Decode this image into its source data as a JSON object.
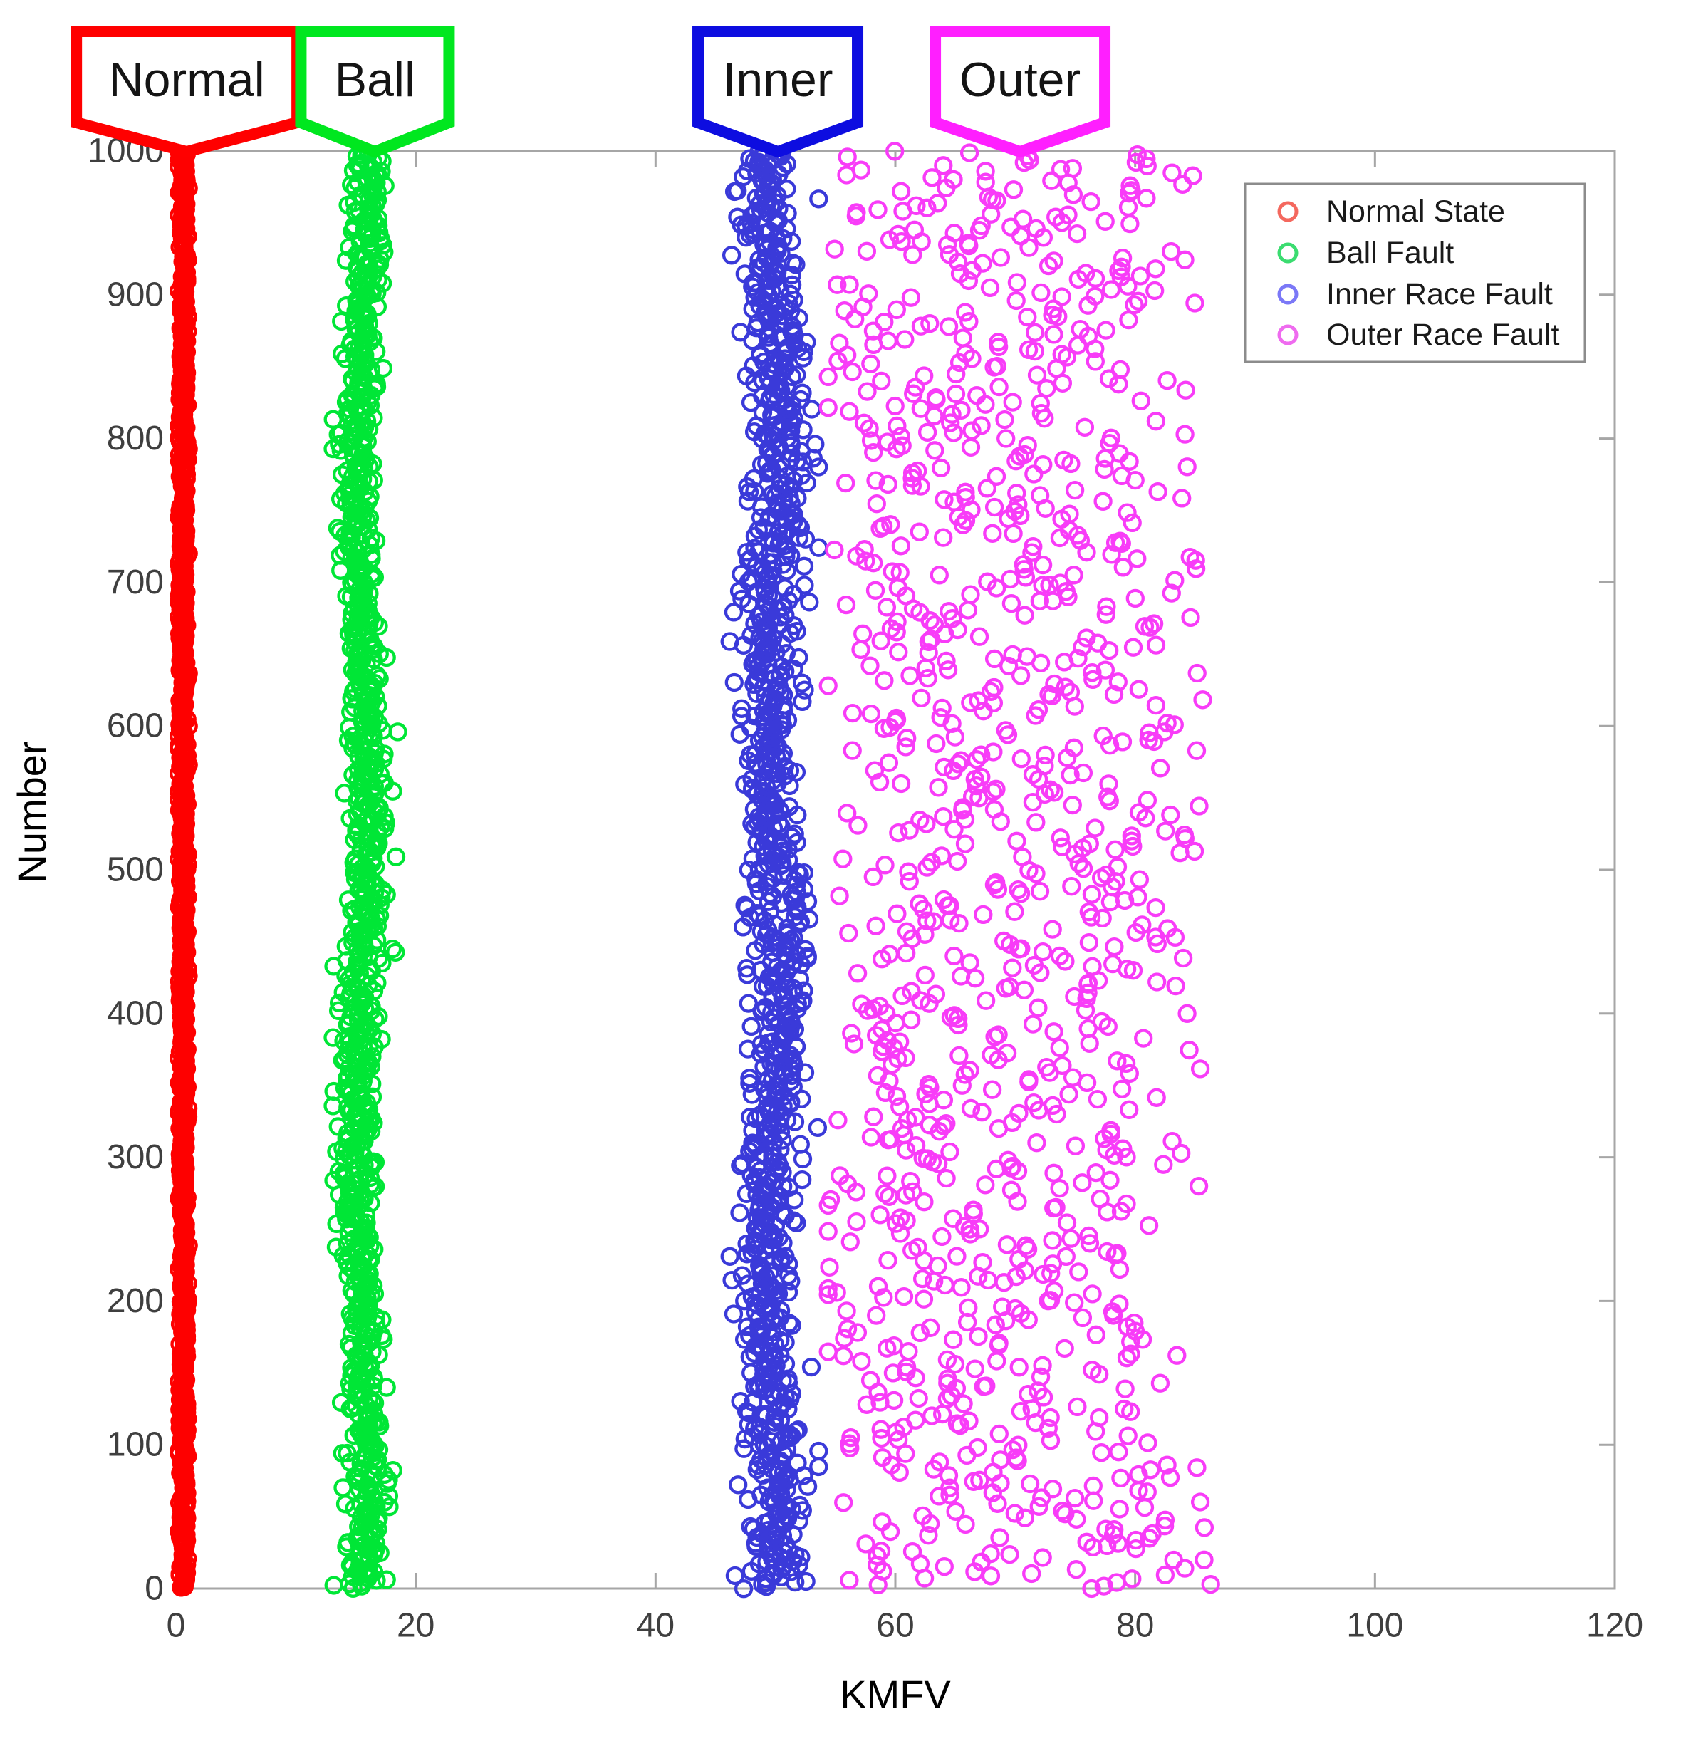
{
  "figure": {
    "background": "#ffffff",
    "description_labels": [
      "Normal",
      "Ball",
      "Inner",
      "Outer"
    ]
  },
  "callouts": [
    {
      "label": "Normal",
      "border_color": "#ff0000",
      "points_to_x": 0.9
    },
    {
      "label": "Ball",
      "border_color": "#00e71f",
      "points_to_x": 16.6
    },
    {
      "label": "Inner",
      "border_color": "#0d0de0",
      "points_to_x": 50.2
    },
    {
      "label": "Outer",
      "border_color": "#ff1fff",
      "points_to_x": 70.4
    }
  ],
  "legend": {
    "position": "top-right",
    "border_color": "#8c8c8c",
    "marker_shape": "open-circle",
    "items": [
      {
        "label": "Normal State",
        "color": "#f4685e"
      },
      {
        "label": "Ball Fault",
        "color": "#3bdc70"
      },
      {
        "label": "Inner Race Fault",
        "color": "#7b78f7"
      },
      {
        "label": "Outer Race Fault",
        "color": "#ef6bef"
      }
    ]
  },
  "chart_data": {
    "type": "scatter",
    "title": "",
    "xlabel": "KMFV",
    "ylabel": "Number",
    "xlim": [
      0,
      120
    ],
    "ylim": [
      0,
      1000
    ],
    "xticks": [
      0,
      20,
      40,
      60,
      80,
      100,
      120
    ],
    "yticks": [
      0,
      100,
      200,
      300,
      400,
      500,
      600,
      700,
      800,
      900,
      1000
    ],
    "grid": false,
    "marker": "open-circle",
    "seed": 20,
    "series": [
      {
        "name": "Normal State",
        "color": "#fe0000",
        "n": 1000,
        "x_profile": "gaussian",
        "x_center": 0.62,
        "x_spread": 0.17,
        "x_range": [
          0.25,
          1.05
        ],
        "x_wander": 0,
        "y_range": [
          0,
          1000
        ],
        "y_distribution": "uniform",
        "appearance": "points so dense they form a solid vertical line near x=1"
      },
      {
        "name": "Ball Fault",
        "color": "#00e636",
        "n": 1000,
        "x_profile": "gaussian",
        "x_center": 15.55,
        "x_spread": 0.82,
        "x_range": [
          13.1,
          18.7
        ],
        "x_wander": 0.45,
        "wander_freq": 2.2,
        "wander_phase": 0.4,
        "y_range": [
          0,
          1000
        ],
        "y_distribution": "uniform",
        "appearance": "tight vertical band centered near x=15.5"
      },
      {
        "name": "Inner Race Fault",
        "color": "#3a3ad9",
        "n": 1000,
        "x_profile": "gaussian",
        "x_center": 49.8,
        "x_spread": 1.25,
        "x_range": [
          46.2,
          53.6
        ],
        "x_wander": 0.55,
        "wander_freq": 2.6,
        "wander_phase": 1.2,
        "y_range": [
          0,
          1000
        ],
        "y_distribution": "uniform",
        "appearance": "dense vertical band centered near x=50"
      },
      {
        "name": "Outer Race Fault",
        "color": "#f83cf8",
        "n": 1000,
        "x_profile": "uniform-band",
        "x_center": 68,
        "x_spread": 6.5,
        "x_band": [
          56.2,
          80.0
        ],
        "band_noise": 2.0,
        "tail_fraction": 0.09,
        "tail_range": [
          79.5,
          86.3
        ],
        "x_range": [
          54.4,
          86.4
        ],
        "x_wander": 0.8,
        "wander_freq": 1.7,
        "wander_phase": 2.1,
        "y_range": [
          0,
          1000
        ],
        "y_distribution": "uniform",
        "appearance": "broad scattered cloud from x=55 to x=86"
      }
    ]
  }
}
